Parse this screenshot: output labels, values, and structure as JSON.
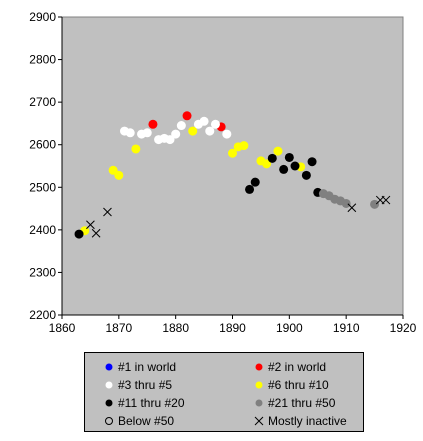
{
  "chart_data": {
    "type": "scatter",
    "title": "",
    "xlabel": "",
    "ylabel": "",
    "xlim": [
      1860,
      1920
    ],
    "ylim": [
      2200,
      2900
    ],
    "xticks": [
      1860,
      1870,
      1880,
      1890,
      1900,
      1910,
      1920
    ],
    "yticks": [
      2200,
      2300,
      2400,
      2500,
      2600,
      2700,
      2800,
      2900
    ],
    "grid": false,
    "plot_background": "#c0c0c0",
    "legend_position": "bottom",
    "series": [
      {
        "name": "#1 in world",
        "marker": "dot",
        "color": "#0000ff",
        "points": []
      },
      {
        "name": "#2 in world",
        "marker": "dot",
        "color": "#ff0000",
        "points": [
          [
            1876,
            2648
          ],
          [
            1882,
            2668
          ],
          [
            1888,
            2642
          ]
        ]
      },
      {
        "name": "#3 thru #5",
        "marker": "dot",
        "color": "#ffffff",
        "points": [
          [
            1871,
            2632
          ],
          [
            1872,
            2628
          ],
          [
            1874,
            2625
          ],
          [
            1875,
            2628
          ],
          [
            1877,
            2612
          ],
          [
            1878,
            2615
          ],
          [
            1879,
            2612
          ],
          [
            1880,
            2625
          ],
          [
            1881,
            2645
          ],
          [
            1884,
            2648
          ],
          [
            1885,
            2655
          ],
          [
            1886,
            2632
          ],
          [
            1887,
            2648
          ],
          [
            1889,
            2625
          ]
        ]
      },
      {
        "name": "#6 thru #10",
        "marker": "dot",
        "color": "#ffff00",
        "points": [
          [
            1864,
            2398
          ],
          [
            1869,
            2540
          ],
          [
            1870,
            2528
          ],
          [
            1873,
            2590
          ],
          [
            1883,
            2632
          ],
          [
            1890,
            2580
          ],
          [
            1891,
            2595
          ],
          [
            1892,
            2598
          ],
          [
            1895,
            2562
          ],
          [
            1896,
            2555
          ],
          [
            1898,
            2585
          ],
          [
            1902,
            2548
          ]
        ]
      },
      {
        "name": "#11 thru #20",
        "marker": "dot",
        "color": "#000000",
        "points": [
          [
            1863,
            2390
          ],
          [
            1893,
            2495
          ],
          [
            1894,
            2512
          ],
          [
            1897,
            2568
          ],
          [
            1899,
            2542
          ],
          [
            1900,
            2570
          ],
          [
            1901,
            2550
          ],
          [
            1903,
            2528
          ],
          [
            1904,
            2560
          ],
          [
            1905,
            2488
          ]
        ]
      },
      {
        "name": "#21 thru #50",
        "marker": "dot",
        "color": "#808080",
        "points": [
          [
            1906,
            2485
          ],
          [
            1907,
            2480
          ],
          [
            1908,
            2472
          ],
          [
            1909,
            2468
          ],
          [
            1910,
            2462
          ],
          [
            1915,
            2460
          ]
        ]
      },
      {
        "name": "Below #50",
        "marker": "circle",
        "color": "#000000",
        "points": []
      },
      {
        "name": "Mostly inactive",
        "marker": "x",
        "color": "#000000",
        "points": [
          [
            1865,
            2412
          ],
          [
            1866,
            2392
          ],
          [
            1868,
            2442
          ],
          [
            1911,
            2452
          ],
          [
            1916,
            2470
          ],
          [
            1917,
            2470
          ]
        ]
      }
    ]
  }
}
